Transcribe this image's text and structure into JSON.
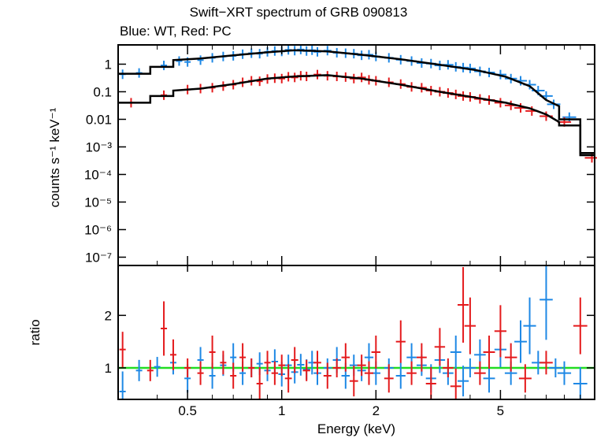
{
  "chart_data": {
    "type": "scatter",
    "title": "Swift−XRT spectrum of GRB 090813",
    "subtitle": "Blue: WT, Red: PC",
    "xlabel": "Energy (keV)",
    "xscale": "log",
    "xlim": [
      0.3,
      10
    ],
    "xticks": [
      {
        "v": 0.5,
        "label": "0.5"
      },
      {
        "v": 1,
        "label": "1"
      },
      {
        "v": 2,
        "label": "2"
      },
      {
        "v": 5,
        "label": "5"
      }
    ],
    "panels": {
      "spectrum": {
        "ylabel": "counts s⁻¹ keV⁻¹",
        "yscale": "log",
        "ylim": [
          5e-08,
          5
        ],
        "yticks": [
          {
            "v": 1,
            "label": "1"
          },
          {
            "v": 0.1,
            "label": "0.1"
          },
          {
            "v": 0.01,
            "label": "0.01"
          },
          {
            "v": 0.001,
            "label": "10⁻³"
          },
          {
            "v": 0.0001,
            "label": "10⁻⁴"
          },
          {
            "v": 1e-05,
            "label": "10⁻⁵"
          },
          {
            "v": 1e-06,
            "label": "10⁻⁶"
          },
          {
            "v": 1e-07,
            "label": "10⁻⁷"
          }
        ]
      },
      "ratio": {
        "ylabel": "ratio",
        "yscale": "linear",
        "ylim": [
          0.4,
          2.95
        ],
        "yticks": [
          {
            "v": 1,
            "label": "1"
          },
          {
            "v": 2,
            "label": "2"
          }
        ],
        "reference_line": 1
      }
    },
    "series": [
      {
        "name": "WT",
        "color": "#1e88e5",
        "model": [
          [
            0.3,
            0.45
          ],
          [
            0.38,
            0.45
          ],
          [
            0.38,
            0.8
          ],
          [
            0.45,
            0.8
          ],
          [
            0.45,
            1.4
          ],
          [
            0.55,
            1.6
          ],
          [
            0.7,
            2.1
          ],
          [
            0.9,
            2.7
          ],
          [
            1.1,
            3.2
          ],
          [
            1.4,
            2.9
          ],
          [
            1.8,
            2.2
          ],
          [
            2.4,
            1.5
          ],
          [
            3.2,
            0.95
          ],
          [
            4.2,
            0.6
          ],
          [
            5.2,
            0.35
          ],
          [
            6.2,
            0.16
          ],
          [
            7.0,
            0.05
          ],
          [
            7.7,
            0.03
          ],
          [
            7.7,
            0.01
          ],
          [
            9.0,
            0.01
          ],
          [
            9.0,
            0.0005
          ],
          [
            10,
            0.0005
          ]
        ],
        "spectrum": [
          [
            0.31,
            0.43
          ],
          [
            0.35,
            0.48
          ],
          [
            0.42,
            0.9
          ],
          [
            0.47,
            1.3
          ],
          [
            0.5,
            1.2
          ],
          [
            0.55,
            1.4
          ],
          [
            0.6,
            1.7
          ],
          [
            0.65,
            1.9
          ],
          [
            0.7,
            2.0
          ],
          [
            0.75,
            2.3
          ],
          [
            0.8,
            2.5
          ],
          [
            0.85,
            2.4
          ],
          [
            0.9,
            2.8
          ],
          [
            0.95,
            3.0
          ],
          [
            1.0,
            2.9
          ],
          [
            1.05,
            3.3
          ],
          [
            1.1,
            3.1
          ],
          [
            1.15,
            3.4
          ],
          [
            1.2,
            3.0
          ],
          [
            1.25,
            3.2
          ],
          [
            1.3,
            2.8
          ],
          [
            1.4,
            3.1
          ],
          [
            1.5,
            2.6
          ],
          [
            1.6,
            2.5
          ],
          [
            1.7,
            2.4
          ],
          [
            1.8,
            2.1
          ],
          [
            1.9,
            2.2
          ],
          [
            2.0,
            1.9
          ],
          [
            2.2,
            1.7
          ],
          [
            2.4,
            1.45
          ],
          [
            2.6,
            1.3
          ],
          [
            2.8,
            1.1
          ],
          [
            3.0,
            1.05
          ],
          [
            3.2,
            0.9
          ],
          [
            3.4,
            0.95
          ],
          [
            3.6,
            0.8
          ],
          [
            3.8,
            0.75
          ],
          [
            4.0,
            0.7
          ],
          [
            4.3,
            0.55
          ],
          [
            4.6,
            0.5
          ],
          [
            5.0,
            0.42
          ],
          [
            5.4,
            0.3
          ],
          [
            5.8,
            0.25
          ],
          [
            6.2,
            0.18
          ],
          [
            6.6,
            0.11
          ],
          [
            7.0,
            0.07
          ],
          [
            7.4,
            0.035
          ],
          [
            8.3,
            0.012
          ]
        ],
        "ratio": [
          [
            0.31,
            0.55
          ],
          [
            0.35,
            0.95
          ],
          [
            0.4,
            1.02
          ],
          [
            0.45,
            1.1
          ],
          [
            0.5,
            0.8
          ],
          [
            0.55,
            1.15
          ],
          [
            0.6,
            0.85
          ],
          [
            0.65,
            1.05
          ],
          [
            0.7,
            1.2
          ],
          [
            0.75,
            0.9
          ],
          [
            0.8,
            1.0
          ],
          [
            0.85,
            1.08
          ],
          [
            0.9,
            0.95
          ],
          [
            0.95,
            1.12
          ],
          [
            1.0,
            0.88
          ],
          [
            1.05,
            1.05
          ],
          [
            1.1,
            0.92
          ],
          [
            1.15,
            1.06
          ],
          [
            1.2,
            0.97
          ],
          [
            1.25,
            1.1
          ],
          [
            1.3,
            0.9
          ],
          [
            1.4,
            1.0
          ],
          [
            1.5,
            1.15
          ],
          [
            1.6,
            0.85
          ],
          [
            1.7,
            1.05
          ],
          [
            1.8,
            0.95
          ],
          [
            1.9,
            1.2
          ],
          [
            2.0,
            0.9
          ],
          [
            2.2,
            1.0
          ],
          [
            2.4,
            0.85
          ],
          [
            2.6,
            1.2
          ],
          [
            2.8,
            1.05
          ],
          [
            3.0,
            0.8
          ],
          [
            3.2,
            1.15
          ],
          [
            3.4,
            0.9
          ],
          [
            3.6,
            1.3
          ],
          [
            3.8,
            0.75
          ],
          [
            4.0,
            1.0
          ],
          [
            4.3,
            1.25
          ],
          [
            4.6,
            0.8
          ],
          [
            5.0,
            1.35
          ],
          [
            5.4,
            0.9
          ],
          [
            5.8,
            1.5
          ],
          [
            6.2,
            1.8
          ],
          [
            6.6,
            1.1
          ],
          [
            7.0,
            2.3
          ],
          [
            7.5,
            1.0
          ],
          [
            8.0,
            0.9
          ],
          [
            9.0,
            0.7
          ]
        ]
      },
      {
        "name": "PC",
        "color": "#e41a1c",
        "model": [
          [
            0.3,
            0.04
          ],
          [
            0.38,
            0.04
          ],
          [
            0.38,
            0.07
          ],
          [
            0.45,
            0.07
          ],
          [
            0.45,
            0.11
          ],
          [
            0.55,
            0.13
          ],
          [
            0.7,
            0.19
          ],
          [
            0.9,
            0.3
          ],
          [
            1.1,
            0.36
          ],
          [
            1.4,
            0.4
          ],
          [
            1.8,
            0.3
          ],
          [
            2.4,
            0.18
          ],
          [
            3.2,
            0.1
          ],
          [
            4.2,
            0.06
          ],
          [
            5.2,
            0.04
          ],
          [
            6.2,
            0.025
          ],
          [
            7.0,
            0.015
          ],
          [
            7.7,
            0.008
          ],
          [
            7.7,
            0.006
          ],
          [
            9.0,
            0.006
          ],
          [
            9.0,
            0.0006
          ],
          [
            10,
            0.0006
          ]
        ],
        "spectrum": [
          [
            0.33,
            0.04
          ],
          [
            0.42,
            0.075
          ],
          [
            0.5,
            0.12
          ],
          [
            0.55,
            0.13
          ],
          [
            0.6,
            0.14
          ],
          [
            0.65,
            0.16
          ],
          [
            0.7,
            0.18
          ],
          [
            0.75,
            0.22
          ],
          [
            0.8,
            0.25
          ],
          [
            0.85,
            0.24
          ],
          [
            0.9,
            0.29
          ],
          [
            0.95,
            0.31
          ],
          [
            1.0,
            0.3
          ],
          [
            1.05,
            0.35
          ],
          [
            1.1,
            0.33
          ],
          [
            1.15,
            0.38
          ],
          [
            1.2,
            0.36
          ],
          [
            1.3,
            0.42
          ],
          [
            1.4,
            0.38
          ],
          [
            1.5,
            0.36
          ],
          [
            1.6,
            0.34
          ],
          [
            1.7,
            0.3
          ],
          [
            1.8,
            0.33
          ],
          [
            1.9,
            0.27
          ],
          [
            2.0,
            0.25
          ],
          [
            2.2,
            0.22
          ],
          [
            2.4,
            0.19
          ],
          [
            2.6,
            0.15
          ],
          [
            2.8,
            0.14
          ],
          [
            3.0,
            0.11
          ],
          [
            3.2,
            0.1
          ],
          [
            3.4,
            0.09
          ],
          [
            3.6,
            0.08
          ],
          [
            3.8,
            0.07
          ],
          [
            4.0,
            0.065
          ],
          [
            4.3,
            0.055
          ],
          [
            4.6,
            0.05
          ],
          [
            5.0,
            0.04
          ],
          [
            5.4,
            0.032
          ],
          [
            5.8,
            0.026
          ],
          [
            6.3,
            0.02
          ],
          [
            7.0,
            0.013
          ],
          [
            8.0,
            0.008
          ],
          [
            9.8,
            0.0004
          ]
        ],
        "ratio": [
          [
            0.31,
            1.35
          ],
          [
            0.38,
            0.95
          ],
          [
            0.42,
            1.75
          ],
          [
            0.45,
            1.25
          ],
          [
            0.5,
            1.0
          ],
          [
            0.55,
            0.9
          ],
          [
            0.6,
            1.3
          ],
          [
            0.65,
            1.1
          ],
          [
            0.7,
            0.85
          ],
          [
            0.75,
            1.2
          ],
          [
            0.8,
            1.0
          ],
          [
            0.85,
            0.7
          ],
          [
            0.9,
            1.1
          ],
          [
            0.95,
            0.9
          ],
          [
            1.0,
            1.05
          ],
          [
            1.05,
            0.8
          ],
          [
            1.1,
            1.15
          ],
          [
            1.2,
            0.95
          ],
          [
            1.3,
            1.1
          ],
          [
            1.4,
            0.85
          ],
          [
            1.5,
            1.0
          ],
          [
            1.6,
            1.2
          ],
          [
            1.7,
            0.75
          ],
          [
            1.8,
            1.05
          ],
          [
            1.9,
            0.9
          ],
          [
            2.0,
            1.3
          ],
          [
            2.2,
            0.8
          ],
          [
            2.4,
            1.5
          ],
          [
            2.6,
            0.9
          ],
          [
            2.8,
            1.2
          ],
          [
            3.0,
            0.7
          ],
          [
            3.2,
            1.4
          ],
          [
            3.4,
            1.0
          ],
          [
            3.6,
            0.65
          ],
          [
            3.8,
            2.2
          ],
          [
            4.0,
            1.8
          ],
          [
            4.3,
            0.9
          ],
          [
            4.6,
            1.3
          ],
          [
            5.0,
            1.7
          ],
          [
            5.4,
            1.2
          ],
          [
            6.0,
            0.8
          ],
          [
            7.0,
            1.1
          ],
          [
            9.0,
            1.8
          ]
        ]
      }
    ]
  }
}
